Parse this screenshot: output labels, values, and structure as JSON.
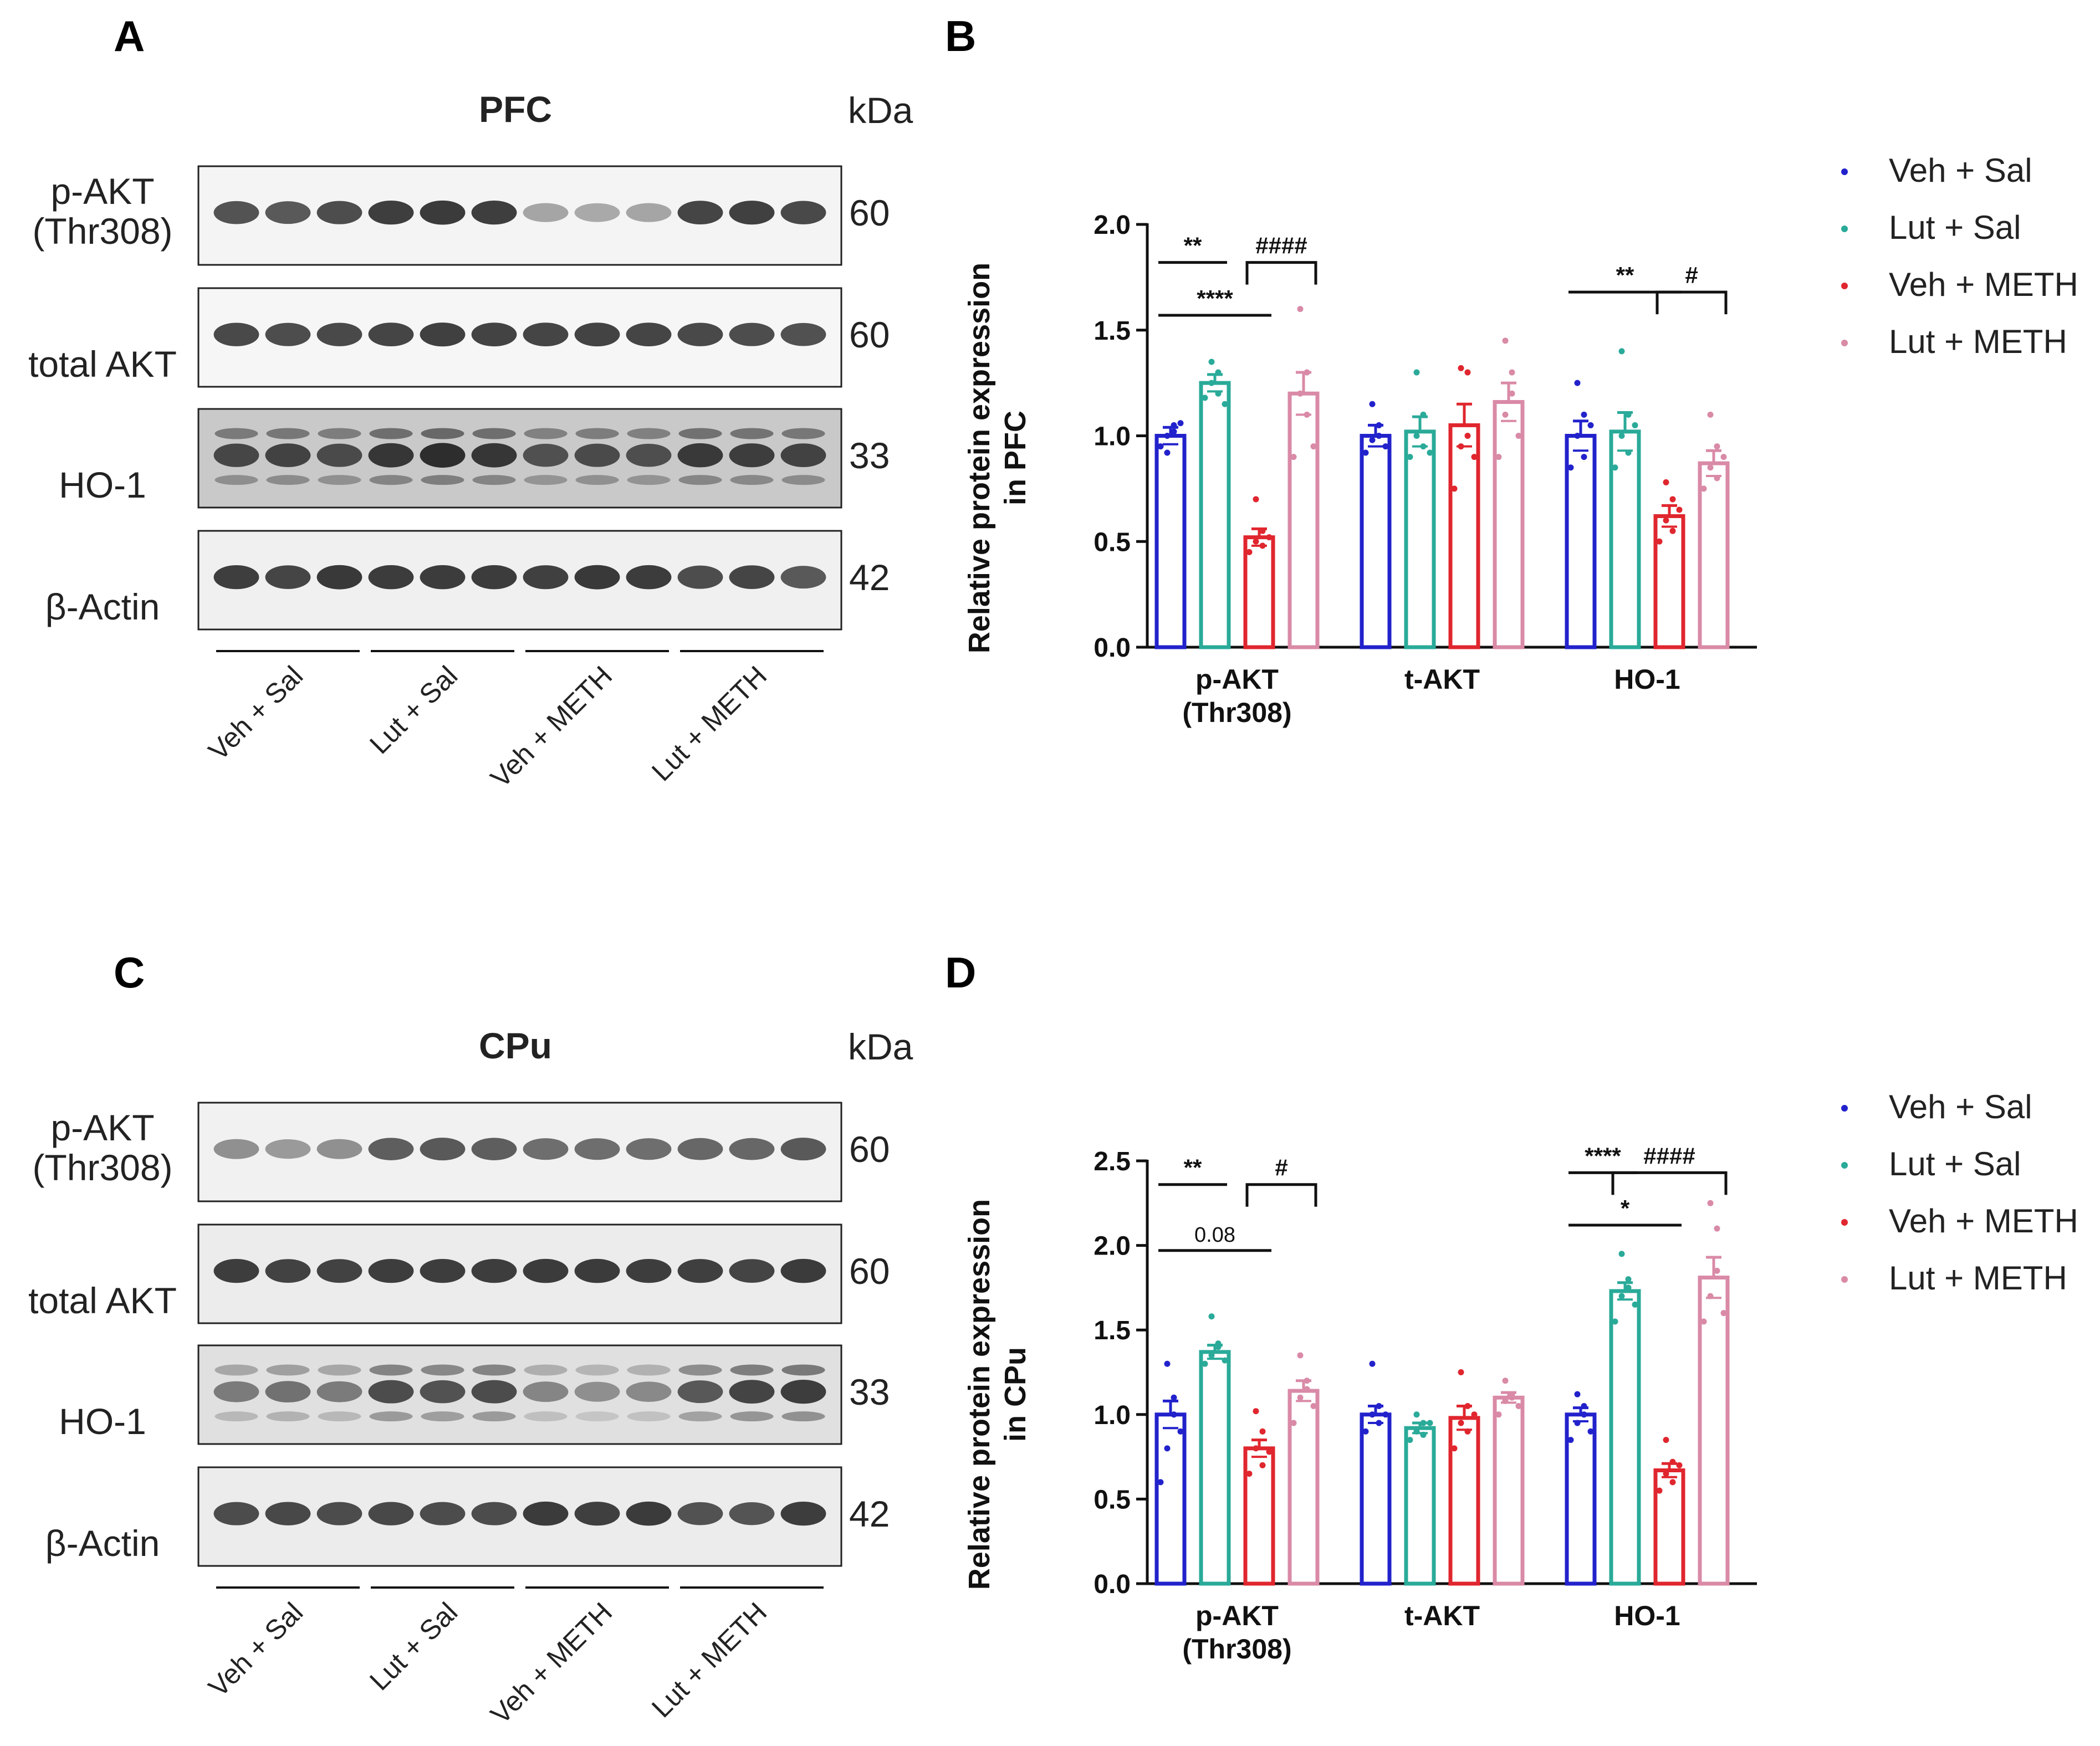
{
  "blots": [
    {
      "letter": "A",
      "title": "PFC",
      "kda": "kDa",
      "rows": [
        {
          "label_lines": [
            "p-AKT",
            "(Thr308)"
          ],
          "kda": "60",
          "background": "#f4f4f4",
          "intensities": [
            0.75,
            0.72,
            0.78,
            0.85,
            0.87,
            0.85,
            0.35,
            0.33,
            0.35,
            0.82,
            0.84,
            0.8
          ]
        },
        {
          "label_lines": [
            "total AKT"
          ],
          "kda": "60",
          "background": "#f6f6f6",
          "intensities": [
            0.8,
            0.78,
            0.8,
            0.82,
            0.84,
            0.83,
            0.82,
            0.83,
            0.82,
            0.8,
            0.78,
            0.76
          ]
        },
        {
          "label_lines": [
            "HO-1"
          ],
          "kda": "33",
          "background": "#c9c9c9",
          "intensities": [
            0.8,
            0.82,
            0.78,
            0.88,
            0.92,
            0.88,
            0.75,
            0.78,
            0.76,
            0.86,
            0.84,
            0.82
          ]
        },
        {
          "label_lines": [
            "β-Actin"
          ],
          "kda": "42",
          "background": "#f0f0f0",
          "intensities": [
            0.85,
            0.82,
            0.88,
            0.86,
            0.86,
            0.86,
            0.84,
            0.88,
            0.86,
            0.78,
            0.82,
            0.72
          ]
        }
      ],
      "groups": [
        "Veh + Sal",
        "Lut + Sal",
        "Veh + METH",
        "Lut + METH"
      ]
    },
    {
      "letter": "C",
      "title": "CPu",
      "kda": "kDa",
      "rows": [
        {
          "label_lines": [
            "p-AKT",
            "(Thr308)"
          ],
          "kda": "60",
          "background": "#f1f1f1",
          "intensities": [
            0.45,
            0.4,
            0.45,
            0.7,
            0.72,
            0.7,
            0.62,
            0.62,
            0.62,
            0.65,
            0.65,
            0.72
          ]
        },
        {
          "label_lines": [
            "total AKT"
          ],
          "kda": "60",
          "background": "#ececec",
          "intensities": [
            0.85,
            0.83,
            0.83,
            0.85,
            0.85,
            0.85,
            0.86,
            0.86,
            0.85,
            0.84,
            0.82,
            0.86
          ]
        },
        {
          "label_lines": [
            "HO-1"
          ],
          "kda": "33",
          "background": "#e0e0e0",
          "intensities": [
            0.55,
            0.6,
            0.55,
            0.78,
            0.75,
            0.78,
            0.5,
            0.45,
            0.48,
            0.72,
            0.82,
            0.85
          ]
        },
        {
          "label_lines": [
            "β-Actin"
          ],
          "kda": "42",
          "background": "#ececec",
          "intensities": [
            0.78,
            0.8,
            0.78,
            0.8,
            0.78,
            0.78,
            0.86,
            0.84,
            0.86,
            0.75,
            0.74,
            0.85
          ]
        }
      ],
      "groups": [
        "Veh + Sal",
        "Lut + Sal",
        "Veh + METH",
        "Lut + METH"
      ]
    }
  ],
  "colors": {
    "veh_sal": "#2222cc",
    "lut_sal": "#2aaa99",
    "veh_meth": "#e0262e",
    "lut_meth": "#d98aa6"
  },
  "chart_data": [
    {
      "letter": "B",
      "type": "bar",
      "ylabel": "Relative protein expression\nin PFC",
      "ylim": [
        0,
        2.0
      ],
      "yticks": [
        "0.0",
        "0.5",
        "1.0",
        "1.5",
        "2.0"
      ],
      "categories": [
        "p-AKT\n(Thr308)",
        "t-AKT",
        "HO-1"
      ],
      "series": [
        {
          "name": "Veh + Sal",
          "values": [
            1.0,
            1.0,
            1.0
          ],
          "sem": [
            0.04,
            0.05,
            0.07
          ],
          "points": [
            [
              0.95,
              1.0,
              1.05,
              0.92,
              1.02,
              1.06
            ],
            [
              0.92,
              0.98,
              1.05,
              1.15,
              1.0,
              0.95
            ],
            [
              0.85,
              1.0,
              1.1,
              1.25,
              0.9,
              1.05
            ]
          ]
        },
        {
          "name": "Lut + Sal",
          "values": [
            1.25,
            1.02,
            1.02
          ],
          "sem": [
            0.04,
            0.07,
            0.09
          ],
          "points": [
            [
              1.18,
              1.25,
              1.3,
              1.35,
              1.2,
              1.15
            ],
            [
              0.9,
              1.0,
              1.1,
              1.3,
              0.95,
              0.92
            ],
            [
              0.85,
              1.0,
              1.1,
              1.4,
              0.92,
              1.05
            ]
          ]
        },
        {
          "name": "Veh + METH",
          "values": [
            0.52,
            1.05,
            0.62
          ],
          "sem": [
            0.04,
            0.1,
            0.05
          ],
          "points": [
            [
              0.45,
              0.5,
              0.55,
              0.7,
              0.48,
              0.52
            ],
            [
              0.75,
              0.95,
              1.3,
              1.32,
              1.0,
              0.9
            ],
            [
              0.5,
              0.6,
              0.7,
              0.78,
              0.55,
              0.65
            ]
          ]
        },
        {
          "name": "Lut + METH",
          "values": [
            1.2,
            1.16,
            0.87
          ],
          "sem": [
            0.1,
            0.09,
            0.06
          ],
          "points": [
            [
              0.9,
              1.2,
              1.3,
              1.6,
              1.1,
              0.95
            ],
            [
              0.9,
              1.1,
              1.2,
              1.45,
              1.3,
              1.0
            ],
            [
              0.75,
              0.85,
              0.95,
              1.1,
              0.8,
              0.9
            ]
          ]
        }
      ],
      "annotations": [
        {
          "text": "**",
          "kind": "line",
          "cat": 0,
          "from": 0,
          "to": 1,
          "y": 1.82
        },
        {
          "text": "****",
          "kind": "line",
          "cat": 0,
          "from": 0,
          "to": 2,
          "y": 1.57
        },
        {
          "text": "####",
          "kind": "bracket",
          "cat": 0,
          "from": 2,
          "to": 3,
          "y": 1.82
        },
        {
          "text": "**",
          "kind": "line",
          "cat": 2,
          "from": 0,
          "to": 2,
          "y": 1.68
        },
        {
          "text": "#",
          "kind": "bracket",
          "cat": 2,
          "from": 2,
          "to": 3,
          "y": 1.68
        }
      ],
      "legend": [
        "Veh + Sal",
        "Lut + Sal",
        "Veh + METH",
        "Lut + METH"
      ],
      "legend_position": "right"
    },
    {
      "letter": "D",
      "type": "bar",
      "ylabel": "Relative protein expression\nin CPu",
      "ylim": [
        0,
        2.5
      ],
      "yticks": [
        "0.0",
        "0.5",
        "1.0",
        "1.5",
        "2.0",
        "2.5"
      ],
      "categories": [
        "p-AKT\n(Thr308)",
        "t-AKT",
        "HO-1"
      ],
      "series": [
        {
          "name": "Veh + Sal",
          "values": [
            1.0,
            1.0,
            1.0
          ],
          "sem": [
            0.08,
            0.05,
            0.04
          ],
          "points": [
            [
              0.6,
              0.8,
              1.0,
              1.3,
              1.1,
              0.9
            ],
            [
              0.9,
              1.0,
              1.05,
              1.3,
              0.95,
              1.0
            ],
            [
              0.85,
              0.95,
              1.0,
              1.12,
              1.05,
              0.9
            ]
          ]
        },
        {
          "name": "Lut + Sal",
          "values": [
            1.37,
            0.92,
            1.73
          ],
          "sem": [
            0.04,
            0.03,
            0.05
          ],
          "points": [
            [
              1.3,
              1.35,
              1.4,
              1.58,
              1.42,
              1.32
            ],
            [
              0.85,
              0.9,
              0.95,
              1.0,
              0.88,
              0.95
            ],
            [
              1.55,
              1.7,
              1.75,
              1.95,
              1.8,
              1.65
            ]
          ]
        },
        {
          "name": "Veh + METH",
          "values": [
            0.8,
            0.98,
            0.67
          ],
          "sem": [
            0.05,
            0.07,
            0.04
          ],
          "points": [
            [
              0.65,
              0.8,
              0.9,
              1.02,
              0.7,
              0.78
            ],
            [
              0.8,
              0.95,
              1.05,
              1.25,
              0.9,
              1.0
            ],
            [
              0.55,
              0.65,
              0.72,
              0.85,
              0.6,
              0.7
            ]
          ]
        },
        {
          "name": "Lut + METH",
          "values": [
            1.14,
            1.1,
            1.81
          ],
          "sem": [
            0.06,
            0.03,
            0.12
          ],
          "points": [
            [
              0.95,
              1.1,
              1.2,
              1.35,
              1.15,
              1.05
            ],
            [
              1.0,
              1.08,
              1.12,
              1.2,
              1.1,
              1.05
            ],
            [
              1.55,
              1.7,
              1.85,
              2.25,
              2.1,
              1.6
            ]
          ]
        }
      ],
      "annotations": [
        {
          "text": "**",
          "kind": "line",
          "cat": 0,
          "from": 0,
          "to": 1,
          "y": 2.36
        },
        {
          "text": "0.08",
          "kind": "line",
          "cat": 0,
          "from": 0,
          "to": 2,
          "y": 1.97
        },
        {
          "text": "#",
          "kind": "bracket",
          "cat": 0,
          "from": 2,
          "to": 3,
          "y": 2.36
        },
        {
          "text": "****",
          "kind": "line",
          "cat": 2,
          "from": 0,
          "to": 1,
          "y": 2.43
        },
        {
          "text": "*",
          "kind": "line",
          "cat": 2,
          "from": 0,
          "to": 2,
          "y": 2.12
        },
        {
          "text": "####",
          "kind": "bracket",
          "cat": 2,
          "from": 1,
          "to": 3,
          "y": 2.43
        }
      ],
      "legend": [
        "Veh + Sal",
        "Lut + Sal",
        "Veh + METH",
        "Lut + METH"
      ],
      "legend_position": "right"
    }
  ]
}
